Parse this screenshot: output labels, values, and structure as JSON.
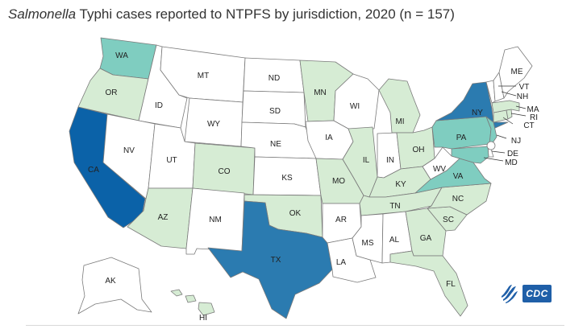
{
  "title": {
    "italic": "Salmonella",
    "rest": " Typhi cases reported to NTPFS by jurisdiction, 2020 (n = 157)"
  },
  "colors": {
    "none": "#ffffff",
    "light": "#d6ecd4",
    "teal_light": "#7fcdc0",
    "blue_mid": "#2b7bb0",
    "blue_dark": "#0b62a8",
    "border": "#7a7a7a"
  },
  "states": {
    "WA": {
      "label": "WA",
      "fill": "#7fcdc0"
    },
    "OR": {
      "label": "OR",
      "fill": "#d6ecd4"
    },
    "CA": {
      "label": "CA",
      "fill": "#0b62a8"
    },
    "ID": {
      "label": "ID",
      "fill": "#ffffff"
    },
    "NV": {
      "label": "NV",
      "fill": "#ffffff"
    },
    "MT": {
      "label": "MT",
      "fill": "#ffffff"
    },
    "WY": {
      "label": "WY",
      "fill": "#ffffff"
    },
    "UT": {
      "label": "UT",
      "fill": "#ffffff"
    },
    "AZ": {
      "label": "AZ",
      "fill": "#d6ecd4"
    },
    "CO": {
      "label": "CO",
      "fill": "#d6ecd4"
    },
    "NM": {
      "label": "NM",
      "fill": "#ffffff"
    },
    "ND": {
      "label": "ND",
      "fill": "#ffffff"
    },
    "SD": {
      "label": "SD",
      "fill": "#ffffff"
    },
    "NE": {
      "label": "NE",
      "fill": "#ffffff"
    },
    "KS": {
      "label": "KS",
      "fill": "#ffffff"
    },
    "OK": {
      "label": "OK",
      "fill": "#d6ecd4"
    },
    "TX": {
      "label": "TX",
      "fill": "#2b7bb0"
    },
    "MN": {
      "label": "MN",
      "fill": "#d6ecd4"
    },
    "IA": {
      "label": "IA",
      "fill": "#ffffff"
    },
    "MO": {
      "label": "MO",
      "fill": "#d6ecd4"
    },
    "AR": {
      "label": "AR",
      "fill": "#ffffff"
    },
    "LA": {
      "label": "LA",
      "fill": "#ffffff"
    },
    "WI": {
      "label": "WI",
      "fill": "#ffffff"
    },
    "IL": {
      "label": "IL",
      "fill": "#d6ecd4"
    },
    "MI": {
      "label": "MI",
      "fill": "#d6ecd4"
    },
    "IN": {
      "label": "IN",
      "fill": "#ffffff"
    },
    "OH": {
      "label": "OH",
      "fill": "#d6ecd4"
    },
    "KY": {
      "label": "KY",
      "fill": "#d6ecd4"
    },
    "TN": {
      "label": "TN",
      "fill": "#d6ecd4"
    },
    "MS": {
      "label": "MS",
      "fill": "#ffffff"
    },
    "AL": {
      "label": "AL",
      "fill": "#ffffff"
    },
    "GA": {
      "label": "GA",
      "fill": "#d6ecd4"
    },
    "FL": {
      "label": "FL",
      "fill": "#d6ecd4"
    },
    "SC": {
      "label": "SC",
      "fill": "#d6ecd4"
    },
    "NC": {
      "label": "NC",
      "fill": "#d6ecd4"
    },
    "VA": {
      "label": "VA",
      "fill": "#7fcdc0"
    },
    "WV": {
      "label": "WV",
      "fill": "#ffffff"
    },
    "PA": {
      "label": "PA",
      "fill": "#7fcdc0"
    },
    "NY": {
      "label": "NY",
      "fill": "#2b7bb0"
    },
    "NJ": {
      "label": "NJ",
      "fill": "#7fcdc0"
    },
    "DE": {
      "label": "DE",
      "fill": "#ffffff"
    },
    "MD": {
      "label": "MD",
      "fill": "#7fcdc0"
    },
    "CT": {
      "label": "CT",
      "fill": "#d6ecd4"
    },
    "RI": {
      "label": "RI",
      "fill": "#d6ecd4"
    },
    "MA": {
      "label": "MA",
      "fill": "#d6ecd4"
    },
    "VT": {
      "label": "VT",
      "fill": "#ffffff"
    },
    "NH": {
      "label": "NH",
      "fill": "#ffffff"
    },
    "ME": {
      "label": "ME",
      "fill": "#ffffff"
    },
    "AK": {
      "label": "AK",
      "fill": "#ffffff"
    },
    "HI": {
      "label": "HI",
      "fill": "#d6ecd4"
    }
  },
  "logos": {
    "hhs": "hhs-eagle-icon",
    "cdc": "CDC"
  }
}
